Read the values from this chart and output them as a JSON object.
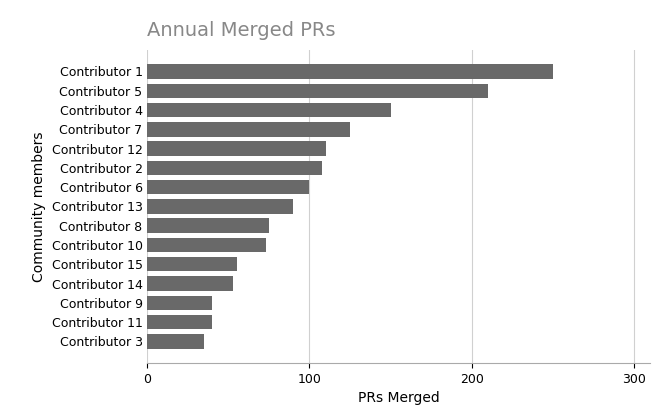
{
  "title": "Annual Merged PRs",
  "xlabel": "PRs Merged",
  "ylabel": "Community members",
  "contributors": [
    "Contributor 1",
    "Contributor 5",
    "Contributor 4",
    "Contributor 7",
    "Contributor 12",
    "Contributor 2",
    "Contributor 6",
    "Contributor 13",
    "Contributor 8",
    "Contributor 10",
    "Contributor 15",
    "Contributor 14",
    "Contributor 9",
    "Contributor 11",
    "Contributor 3"
  ],
  "values": [
    250,
    210,
    150,
    125,
    110,
    108,
    100,
    90,
    75,
    73,
    55,
    53,
    40,
    40,
    35
  ],
  "bar_color": "#696969",
  "xlim": [
    0,
    310
  ],
  "xticks": [
    0,
    100,
    200,
    300
  ],
  "background_color": "#ffffff",
  "title_fontsize": 14,
  "title_color": "#888888",
  "label_fontsize": 10,
  "tick_fontsize": 9,
  "bar_height": 0.75
}
